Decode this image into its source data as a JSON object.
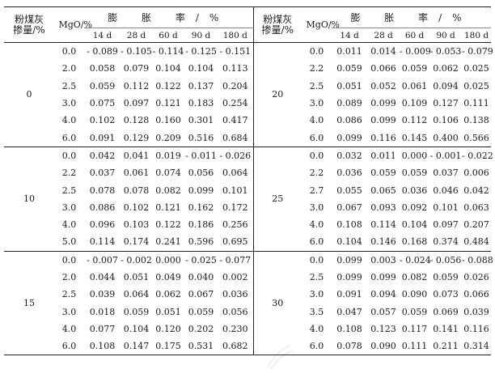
{
  "headers": {
    "fly_ash": "粉煤灰掺量/%",
    "mgo": "MgO/%",
    "expansion_rate": "膨 胀 率/%",
    "ages": [
      "14 d",
      "28 d",
      "60 d",
      "90 d",
      "180 d"
    ]
  },
  "left_groups": [
    {
      "fly_ash": "0",
      "rows": [
        {
          "mgo": "0.0",
          "vals": [
            "- 0.089",
            "- 0.105",
            "- 0.114",
            "- 0.125",
            "- 0.151"
          ]
        },
        {
          "mgo": "2.0",
          "vals": [
            "0.058",
            "0.079",
            "0.104",
            "0.104",
            "0.113"
          ]
        },
        {
          "mgo": "2.5",
          "vals": [
            "0.059",
            "0.112",
            "0.122",
            "0.137",
            "0.204"
          ]
        },
        {
          "mgo": "3.0",
          "vals": [
            "0.075",
            "0.097",
            "0.121",
            "0.183",
            "0.254"
          ]
        },
        {
          "mgo": "4.0",
          "vals": [
            "0.102",
            "0.128",
            "0.160",
            "0.301",
            "0.417"
          ]
        },
        {
          "mgo": "6.0",
          "vals": [
            "0.091",
            "0.129",
            "0.209",
            "0.516",
            "0.684"
          ]
        }
      ]
    },
    {
      "fly_ash": "10",
      "rows": [
        {
          "mgo": "0.0",
          "vals": [
            "0.042",
            "0.041",
            "0.019",
            "- 0.011",
            "- 0.026"
          ]
        },
        {
          "mgo": "2.2",
          "vals": [
            "0.037",
            "0.061",
            "0.074",
            "0.056",
            "0.064"
          ]
        },
        {
          "mgo": "2.5",
          "vals": [
            "0.078",
            "0.078",
            "0.082",
            "0.099",
            "0.101"
          ]
        },
        {
          "mgo": "3.0",
          "vals": [
            "0.086",
            "0.102",
            "0.121",
            "0.162",
            "0.172"
          ]
        },
        {
          "mgo": "4.0",
          "vals": [
            "0.096",
            "0.103",
            "0.122",
            "0.186",
            "0.256"
          ]
        },
        {
          "mgo": "5.0",
          "vals": [
            "0.114",
            "0.174",
            "0.241",
            "0.596",
            "0.695"
          ]
        }
      ]
    },
    {
      "fly_ash": "15",
      "rows": [
        {
          "mgo": "0.0",
          "vals": [
            "- 0.007",
            "- 0.002",
            "0.000",
            "- 0.025",
            "- 0.077"
          ]
        },
        {
          "mgo": "2.0",
          "vals": [
            "0.044",
            "0.051",
            "0.049",
            "0.040",
            "0.002"
          ]
        },
        {
          "mgo": "2.5",
          "vals": [
            "0.039",
            "0.064",
            "0.062",
            "0.067",
            "0.036"
          ]
        },
        {
          "mgo": "3.0",
          "vals": [
            "0.018",
            "0.059",
            "0.051",
            "0.059",
            "0.056"
          ]
        },
        {
          "mgo": "4.0",
          "vals": [
            "0.077",
            "0.104",
            "0.120",
            "0.202",
            "0.230"
          ]
        },
        {
          "mgo": "6.0",
          "vals": [
            "0.108",
            "0.147",
            "0.175",
            "0.531",
            "0.682"
          ]
        }
      ]
    }
  ],
  "right_groups": [
    {
      "fly_ash": "20",
      "rows": [
        {
          "mgo": "0.0",
          "vals": [
            "0.011",
            "0.014",
            "- 0.009",
            "- 0.053",
            "- 0.079"
          ]
        },
        {
          "mgo": "2.2",
          "vals": [
            "0.059",
            "0.066",
            "0.059",
            "0.062",
            "0.025"
          ]
        },
        {
          "mgo": "2.5",
          "vals": [
            "0.051",
            "0.052",
            "0.061",
            "0.094",
            "0.025"
          ]
        },
        {
          "mgo": "3.0",
          "vals": [
            "0.089",
            "0.099",
            "0.109",
            "0.127",
            "0.111"
          ]
        },
        {
          "mgo": "4.0",
          "vals": [
            "0.086",
            "0.099",
            "0.112",
            "0.106",
            "0.138"
          ]
        },
        {
          "mgo": "6.0",
          "vals": [
            "0.099",
            "0.116",
            "0.145",
            "0.400",
            "0.566"
          ]
        }
      ]
    },
    {
      "fly_ash": "25",
      "rows": [
        {
          "mgo": "0.0",
          "vals": [
            "0.032",
            "0.011",
            "0.000",
            "- 0.001",
            "- 0.022"
          ]
        },
        {
          "mgo": "2.2",
          "vals": [
            "0.036",
            "0.059",
            "0.059",
            "0.037",
            "0.006"
          ]
        },
        {
          "mgo": "2.7",
          "vals": [
            "0.055",
            "0.065",
            "0.036",
            "0.046",
            "0.042"
          ]
        },
        {
          "mgo": "3.0",
          "vals": [
            "0.067",
            "0.093",
            "0.092",
            "0.101",
            "0.063"
          ]
        },
        {
          "mgo": "4.0",
          "vals": [
            "0.108",
            "0.114",
            "0.104",
            "0.097",
            "0.207"
          ]
        },
        {
          "mgo": "6.0",
          "vals": [
            "0.104",
            "0.146",
            "0.168",
            "0.374",
            "0.484"
          ]
        }
      ]
    },
    {
      "fly_ash": "30",
      "rows": [
        {
          "mgo": "0.0",
          "vals": [
            "0.099",
            "0.003",
            "- 0.024",
            "- 0.056",
            "- 0.088"
          ]
        },
        {
          "mgo": "2.5",
          "vals": [
            "0.099",
            "0.099",
            "0.082",
            "0.059",
            "0.026"
          ]
        },
        {
          "mgo": "3.0",
          "vals": [
            "0.091",
            "0.094",
            "0.090",
            "0.073",
            "0.066"
          ]
        },
        {
          "mgo": "3.5",
          "vals": [
            "0.047",
            "0.057",
            "0.059",
            "0.069",
            "0.039"
          ]
        },
        {
          "mgo": "4.0",
          "vals": [
            "0.108",
            "0.123",
            "0.117",
            "0.141",
            "0.116"
          ]
        },
        {
          "mgo": "6.0",
          "vals": [
            "0.078",
            "0.090",
            "0.111",
            "0.211",
            "0.314"
          ]
        }
      ]
    }
  ]
}
